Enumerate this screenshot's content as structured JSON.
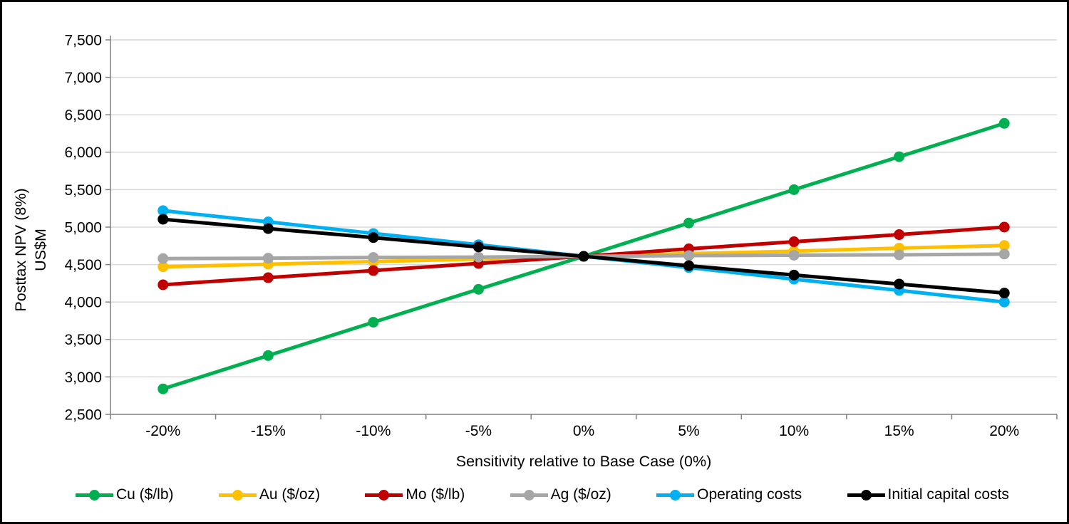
{
  "chart_data": {
    "type": "line",
    "title": "",
    "x_axis": {
      "label": "Sensitivity relative to Base Case (0%)",
      "categories": [
        "-20%",
        "-15%",
        "-10%",
        "-5%",
        "0%",
        "5%",
        "10%",
        "15%",
        "20%"
      ]
    },
    "y_axis": {
      "label_line1": "Posttax NPV (8%)",
      "label_line2": "US$M",
      "min": 2500,
      "max": 7500,
      "tick_step": 500,
      "tick_labels": [
        "2,500",
        "3,000",
        "3,500",
        "4,000",
        "4,500",
        "5,000",
        "5,500",
        "6,000",
        "6,500",
        "7,000",
        "7,500"
      ]
    },
    "grid": "horizontal",
    "legend_position": "bottom",
    "base_case_value": 4610,
    "series": [
      {
        "name": "Cu ($/lb)",
        "color": "#00B050",
        "values": [
          2840,
          3285,
          3730,
          4170,
          4610,
          5055,
          5500,
          5940,
          6385
        ]
      },
      {
        "name": "Au ($/oz)",
        "color": "#FFC000",
        "values": [
          4470,
          4505,
          4540,
          4575,
          4610,
          4645,
          4680,
          4720,
          4755
        ]
      },
      {
        "name": "Mo ($/lb)",
        "color": "#C00000",
        "values": [
          4230,
          4325,
          4420,
          4515,
          4610,
          4710,
          4805,
          4900,
          5000
        ]
      },
      {
        "name": "Ag ($/oz)",
        "color": "#A6A6A6",
        "values": [
          4580,
          4585,
          4595,
          4600,
          4610,
          4620,
          4625,
          4630,
          4640
        ]
      },
      {
        "name": "Operating costs",
        "color": "#00B0F0",
        "values": [
          5220,
          5070,
          4915,
          4765,
          4610,
          4460,
          4305,
          4155,
          4000
        ]
      },
      {
        "name": "Initial capital costs",
        "color": "#000000",
        "values": [
          5105,
          4980,
          4860,
          4735,
          4610,
          4485,
          4360,
          4240,
          4120
        ]
      }
    ],
    "colors": {
      "gridline": "#D9D9D9",
      "axis": "#808080",
      "text": "#000000",
      "background": "#FFFFFF",
      "border": "#000000"
    }
  }
}
